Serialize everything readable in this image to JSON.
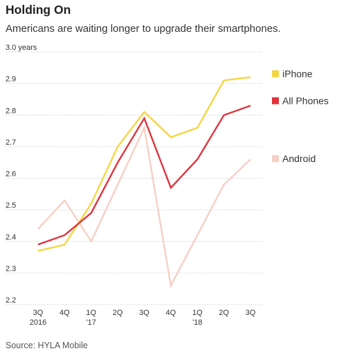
{
  "title": "Holding On",
  "subtitle": "Americans are waiting longer to upgrade their smartphones.",
  "source": "Source: HYLA Mobile",
  "chart_data": {
    "type": "line",
    "title": "Holding On",
    "subtitle": "Americans are waiting longer to upgrade their smartphones.",
    "ylabel": "",
    "ylim": [
      2.2,
      3.0
    ],
    "y_ticks": [
      2.2,
      2.3,
      2.4,
      2.5,
      2.6,
      2.7,
      2.8,
      2.9,
      3.0
    ],
    "y_tick_labels": [
      "2.2",
      "2.3",
      "2.4",
      "2.5",
      "2.6",
      "2.7",
      "2.8",
      "2.9",
      "3.0 years"
    ],
    "grid": true,
    "categories": [
      {
        "line1": "3Q",
        "line2": "2016"
      },
      {
        "line1": "4Q",
        "line2": ""
      },
      {
        "line1": "1Q",
        "line2": "'17"
      },
      {
        "line1": "2Q",
        "line2": ""
      },
      {
        "line1": "3Q",
        "line2": ""
      },
      {
        "line1": "4Q",
        "line2": ""
      },
      {
        "line1": "1Q",
        "line2": "'18"
      },
      {
        "line1": "2Q",
        "line2": ""
      },
      {
        "line1": "3Q",
        "line2": ""
      }
    ],
    "legend_position": "right",
    "series": [
      {
        "name": "Android",
        "color": "#f7cfc4",
        "values": [
          2.44,
          2.53,
          2.4,
          2.58,
          2.76,
          2.26,
          2.42,
          2.58,
          2.66
        ]
      },
      {
        "name": "iPhone",
        "color": "#f6d543",
        "values": [
          2.37,
          2.39,
          2.52,
          2.7,
          2.81,
          2.73,
          2.76,
          2.91,
          2.92
        ]
      },
      {
        "name": "All Phones",
        "color": "#e0323c",
        "values": [
          2.39,
          2.42,
          2.49,
          2.65,
          2.79,
          2.57,
          2.66,
          2.8,
          2.83
        ]
      }
    ]
  }
}
